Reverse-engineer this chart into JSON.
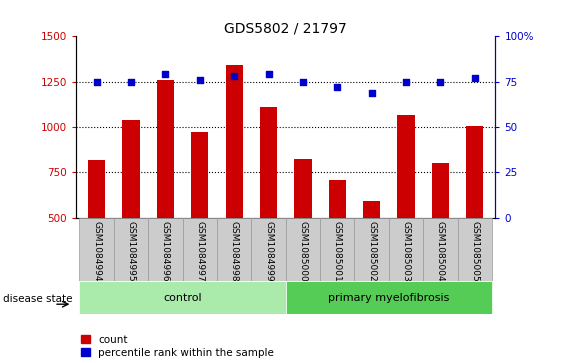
{
  "title": "GDS5802 / 21797",
  "samples": [
    "GSM1084994",
    "GSM1084995",
    "GSM1084996",
    "GSM1084997",
    "GSM1084998",
    "GSM1084999",
    "GSM1085000",
    "GSM1085001",
    "GSM1085002",
    "GSM1085003",
    "GSM1085004",
    "GSM1085005"
  ],
  "counts": [
    820,
    1040,
    1260,
    970,
    1340,
    1110,
    825,
    710,
    590,
    1065,
    800,
    1005
  ],
  "percentiles": [
    75,
    75,
    79,
    76,
    78,
    79,
    75,
    72,
    69,
    75,
    75,
    77
  ],
  "ylim_left": [
    500,
    1500
  ],
  "ylim_right": [
    0,
    100
  ],
  "yticks_left": [
    500,
    750,
    1000,
    1250,
    1500
  ],
  "yticks_right": [
    0,
    25,
    50,
    75,
    100
  ],
  "bar_color": "#cc0000",
  "dot_color": "#0000cc",
  "control_color": "#aaeaaa",
  "myelofibrosis_color": "#55cc55",
  "tick_label_bg": "#cccccc",
  "n_control": 6,
  "n_myelofibrosis": 6,
  "control_label": "control",
  "myelofibrosis_label": "primary myelofibrosis",
  "disease_state_label": "disease state",
  "legend_count": "count",
  "legend_percentile": "percentile rank within the sample",
  "title_fontsize": 10,
  "tick_fontsize": 7.5,
  "bar_width": 0.5,
  "ymin": 500
}
